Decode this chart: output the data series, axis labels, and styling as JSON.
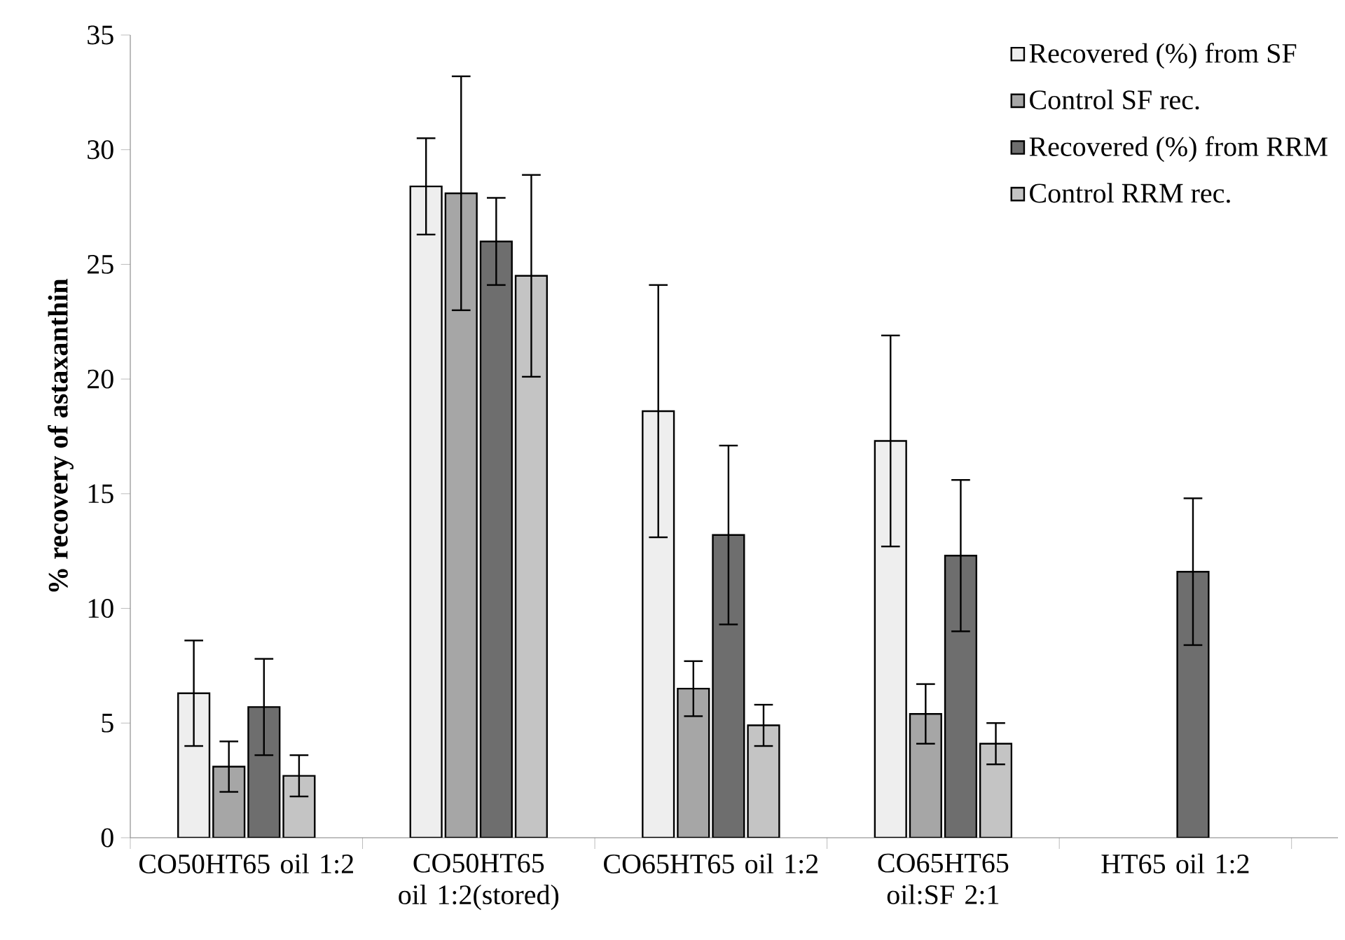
{
  "chart_data": {
    "type": "bar",
    "ylabel": "% recovery of astaxanthin",
    "categories": [
      "CO50HT65 oil 1:2",
      "CO50HT65 oil 1:2(stored)",
      "CO65HT65 oil 1:2",
      "CO65HT65 oil:SF 2:1",
      "HT65 oil 1:2"
    ],
    "series": [
      {
        "name": "Recovered (%) from SF",
        "color": "#eeeeee",
        "values": [
          6.3,
          28.4,
          18.6,
          17.3,
          null
        ],
        "errors": [
          2.3,
          2.1,
          5.5,
          4.6,
          null
        ]
      },
      {
        "name": "Control SF rec.",
        "color": "#a6a6a6",
        "values": [
          3.1,
          28.1,
          6.5,
          5.4,
          null
        ],
        "errors": [
          1.1,
          5.1,
          1.2,
          1.3,
          null
        ]
      },
      {
        "name": "Recovered (%) from RRM",
        "color": "#6e6e6e",
        "values": [
          5.7,
          26.0,
          13.2,
          12.3,
          11.6
        ],
        "errors": [
          2.1,
          1.9,
          3.9,
          3.3,
          3.2
        ]
      },
      {
        "name": "Control RRM rec.",
        "color": "#c4c4c4",
        "values": [
          2.7,
          24.5,
          4.9,
          4.1,
          null
        ],
        "errors": [
          0.9,
          4.4,
          0.9,
          0.9,
          null
        ]
      }
    ],
    "ylim": [
      0,
      35
    ],
    "yticks": [
      0,
      5,
      10,
      15,
      20,
      25,
      30,
      35
    ],
    "legend": "top right"
  }
}
